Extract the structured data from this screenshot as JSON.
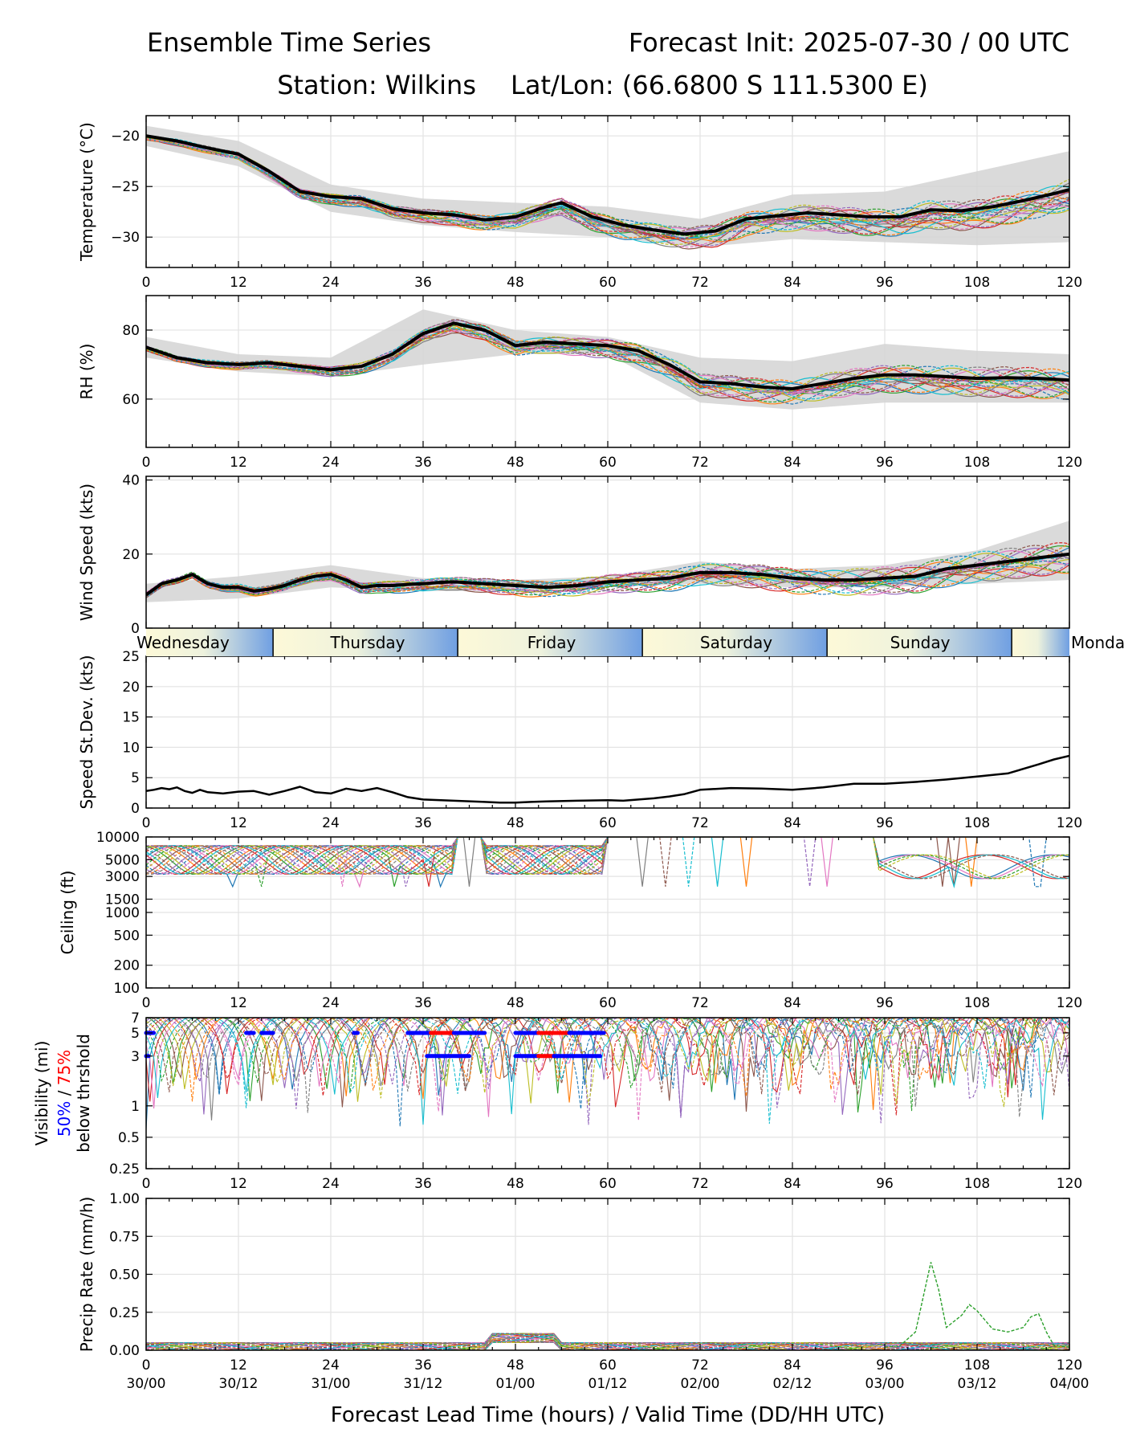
{
  "header": {
    "title": "Ensemble Time Series",
    "init": "Forecast Init: 2025-07-30 / 00 UTC",
    "station": "Station: Wilkins",
    "latlon": "Lat/Lon: (66.6800 S 111.5300 E)"
  },
  "xaxis": {
    "label": "Forecast Lead Time (hours) / Valid Time (DD/HH UTC)",
    "ticks": [
      0,
      12,
      24,
      36,
      48,
      60,
      72,
      84,
      96,
      108,
      120
    ],
    "tick_labels": [
      "0",
      "12",
      "24",
      "36",
      "48",
      "60",
      "72",
      "84",
      "96",
      "108",
      "120"
    ],
    "valid_labels": [
      "30/00",
      "30/12",
      "31/00",
      "31/12",
      "01/00",
      "01/12",
      "02/00",
      "02/12",
      "03/00",
      "03/12",
      "04/00"
    ]
  },
  "day_band": {
    "labels": [
      "Wednesday",
      "Thursday",
      "Friday",
      "Saturday",
      "Sunday",
      "Monda"
    ],
    "dividers_hours": [
      16.5,
      40.5,
      64.5,
      88.5,
      112.5
    ]
  },
  "colors": {
    "members": [
      "#1f77b4",
      "#ff7f0e",
      "#2ca02c",
      "#d62728",
      "#9467bd",
      "#8c564b",
      "#e377c2",
      "#7f7f7f",
      "#bcbd22",
      "#17becf"
    ],
    "mean": "#000000",
    "spread": "#d3d3d3",
    "vis50": "#0000ff",
    "vis75": "#ff0000"
  },
  "chart_data": [
    {
      "id": "temp",
      "type": "line",
      "ylabel": "Temperature (°C)",
      "ylim": [
        -33,
        -18
      ],
      "yticks": [
        -30,
        -25,
        -20
      ],
      "ytick_labels": [
        "−30",
        "−25",
        "−20"
      ],
      "grid": true,
      "members": 20,
      "mean": {
        "x": [
          0,
          4,
          8,
          12,
          16,
          20,
          24,
          28,
          32,
          36,
          40,
          44,
          48,
          52,
          54,
          58,
          62,
          66,
          70,
          74,
          78,
          82,
          86,
          90,
          94,
          98,
          102,
          106,
          110,
          114,
          118,
          120
        ],
        "y": [
          -20,
          -20.5,
          -21.2,
          -21.8,
          -23.5,
          -25.5,
          -26,
          -26.2,
          -27.2,
          -27.6,
          -27.8,
          -28.3,
          -28,
          -27,
          -26.6,
          -28,
          -28.8,
          -29.3,
          -29.7,
          -29.4,
          -28.2,
          -27.9,
          -27.6,
          -27.8,
          -28,
          -28,
          -27.3,
          -27.4,
          -27,
          -26.4,
          -25.7,
          -25.3
        ]
      },
      "spread": {
        "x": [
          0,
          12,
          24,
          36,
          48,
          60,
          72,
          84,
          96,
          108,
          120
        ],
        "lo": [
          -21,
          -23,
          -27.5,
          -28.8,
          -29.5,
          -30,
          -31,
          -30.2,
          -30.5,
          -30.8,
          -30.5
        ],
        "hi": [
          -19,
          -20.5,
          -24.8,
          -26.2,
          -26.6,
          -27,
          -28.2,
          -25.8,
          -25.5,
          -23.5,
          -21.5
        ]
      }
    },
    {
      "id": "rh",
      "type": "line",
      "ylabel": "RH (%)",
      "ylim": [
        46,
        90
      ],
      "yticks": [
        60,
        80
      ],
      "ytick_labels": [
        "60",
        "80"
      ],
      "grid": true,
      "members": 20,
      "mean": {
        "x": [
          0,
          4,
          8,
          12,
          16,
          20,
          24,
          28,
          32,
          36,
          40,
          44,
          48,
          52,
          56,
          60,
          64,
          68,
          72,
          76,
          80,
          84,
          88,
          92,
          96,
          100,
          104,
          108,
          112,
          116,
          120
        ],
        "y": [
          75,
          72,
          70.5,
          70,
          70.5,
          69.5,
          68.5,
          69.5,
          73,
          79,
          82,
          80,
          75.5,
          76.5,
          76,
          75.5,
          74,
          70,
          65,
          64.5,
          63.5,
          63,
          64.5,
          66,
          67,
          67,
          66.5,
          66,
          66.2,
          66,
          65.5
        ]
      },
      "spread": {
        "x": [
          0,
          12,
          24,
          36,
          48,
          60,
          72,
          84,
          96,
          108,
          120
        ],
        "lo": [
          72,
          68,
          66.5,
          70,
          73,
          73,
          59,
          57,
          59,
          59,
          59
        ],
        "hi": [
          78,
          73,
          72,
          86,
          80,
          78,
          72,
          71,
          76,
          74,
          73
        ]
      }
    },
    {
      "id": "wind",
      "type": "line",
      "ylabel": "Wind Speed (kts)",
      "ylim": [
        0,
        41
      ],
      "yticks": [
        0,
        20,
        40
      ],
      "ytick_labels": [
        "0",
        "20",
        "40"
      ],
      "grid": true,
      "members": 20,
      "mean": {
        "x": [
          0,
          2,
          4,
          6,
          8,
          10,
          12,
          14,
          16,
          18,
          20,
          22,
          24,
          26,
          28,
          30,
          32,
          34,
          36,
          38,
          40,
          44,
          48,
          52,
          56,
          60,
          64,
          68,
          72,
          76,
          80,
          84,
          88,
          92,
          96,
          100,
          104,
          108,
          112,
          116,
          120
        ],
        "y": [
          9,
          12,
          13,
          14.5,
          12,
          11,
          11,
          10,
          10.5,
          11.5,
          13,
          14,
          14.5,
          13,
          11,
          11.5,
          11.5,
          11.8,
          12,
          12.3,
          12.5,
          12,
          11.5,
          11,
          11.5,
          12.5,
          13,
          13.5,
          15,
          15,
          14.5,
          13.5,
          13,
          13,
          13.5,
          14,
          16,
          17,
          18,
          19,
          20
        ]
      },
      "spread": {
        "x": [
          0,
          12,
          24,
          36,
          48,
          60,
          72,
          84,
          96,
          108,
          120
        ],
        "lo": [
          7,
          8,
          11,
          10,
          10,
          11,
          12,
          11,
          11,
          12,
          13
        ],
        "hi": [
          12,
          14,
          17,
          13.5,
          13,
          14,
          18,
          16,
          17,
          21,
          29
        ]
      }
    },
    {
      "id": "sd",
      "type": "line",
      "ylabel": "Speed St.Dev. (kts)",
      "ylim": [
        0,
        25
      ],
      "yticks": [
        0,
        5,
        10,
        15,
        20,
        25
      ],
      "ytick_labels": [
        "0",
        "5",
        "10",
        "15",
        "20",
        "25"
      ],
      "grid": true,
      "line": {
        "x": [
          0,
          1,
          2,
          3,
          4,
          5,
          6,
          7,
          8,
          10,
          12,
          14,
          16,
          18,
          20,
          22,
          24,
          26,
          28,
          30,
          32,
          34,
          36,
          40,
          44,
          46,
          48,
          50,
          52,
          56,
          60,
          62,
          64,
          66,
          68,
          70,
          72,
          76,
          80,
          84,
          88,
          92,
          96,
          100,
          104,
          108,
          112,
          116,
          118,
          120
        ],
        "y": [
          2.8,
          3,
          3.3,
          3.1,
          3.4,
          2.8,
          2.5,
          3,
          2.6,
          2.4,
          2.7,
          2.8,
          2.2,
          2.8,
          3.5,
          2.6,
          2.4,
          3.2,
          2.8,
          3.3,
          2.6,
          1.8,
          1.4,
          1.2,
          1,
          0.9,
          0.9,
          1,
          1.1,
          1.2,
          1.3,
          1.2,
          1.4,
          1.6,
          1.9,
          2.3,
          3,
          3.3,
          3.2,
          3,
          3.4,
          4,
          4,
          4.3,
          4.7,
          5.2,
          5.7,
          7.2,
          8,
          8.6
        ]
      }
    },
    {
      "id": "ceiling",
      "type": "line",
      "ylabel": "Ceiling (ft)",
      "yscale": "log",
      "ylim": [
        100,
        10000
      ],
      "yticks": [
        100,
        200,
        500,
        1000,
        1500,
        3000,
        5000,
        10000
      ],
      "ytick_labels": [
        "100",
        "200",
        "500",
        "1000",
        "1500",
        "3000",
        "5000",
        "10000"
      ],
      "grid": true,
      "members": 20
    },
    {
      "id": "vis",
      "type": "line",
      "ylabel": [
        "Visibility (mi)",
        "50%",
        "/",
        "75%",
        "below thrshold"
      ],
      "yscale": "log",
      "ylim": [
        0.25,
        7
      ],
      "yticks": [
        0.25,
        0.5,
        1,
        3,
        5,
        7
      ],
      "ytick_labels": [
        "0.25",
        "0.5",
        "1",
        "3",
        "5",
        "7"
      ],
      "grid": true,
      "members": 20,
      "threshold_bars": [
        {
          "level": 5,
          "color": "blue",
          "x0": 0,
          "x1": 1
        },
        {
          "level": 5,
          "color": "blue",
          "x0": 13,
          "x1": 14
        },
        {
          "level": 5,
          "color": "blue",
          "x0": 15,
          "x1": 16.5
        },
        {
          "level": 5,
          "color": "blue",
          "x0": 27,
          "x1": 27.5
        },
        {
          "level": 5,
          "color": "blue",
          "x0": 34,
          "x1": 37
        },
        {
          "level": 5,
          "color": "red",
          "x0": 37,
          "x1": 40
        },
        {
          "level": 5,
          "color": "blue",
          "x0": 40,
          "x1": 44
        },
        {
          "level": 3,
          "color": "blue",
          "x0": 36.5,
          "x1": 42
        },
        {
          "level": 3,
          "color": "blue",
          "x0": 0,
          "x1": 0.3
        },
        {
          "level": 5,
          "color": "blue",
          "x0": 48,
          "x1": 51
        },
        {
          "level": 5,
          "color": "red",
          "x0": 51,
          "x1": 55
        },
        {
          "level": 5,
          "color": "blue",
          "x0": 55,
          "x1": 59.5
        },
        {
          "level": 3,
          "color": "blue",
          "x0": 48,
          "x1": 51
        },
        {
          "level": 3,
          "color": "red",
          "x0": 51,
          "x1": 53
        },
        {
          "level": 3,
          "color": "blue",
          "x0": 53,
          "x1": 59
        }
      ]
    },
    {
      "id": "precip",
      "type": "line",
      "ylabel": "Precip Rate (mm/h)",
      "ylim": [
        0,
        1
      ],
      "yticks": [
        0,
        0.25,
        0.5,
        0.75,
        1
      ],
      "ytick_labels": [
        "0.00",
        "0.25",
        "0.50",
        "0.75",
        "1.00"
      ],
      "grid": true,
      "members": 20,
      "highlight": {
        "x": [
          96,
          98,
          100,
          101,
          102,
          103,
          104,
          106,
          107,
          108,
          110,
          112,
          114,
          115,
          116,
          117,
          118,
          120
        ],
        "y": [
          0.02,
          0.03,
          0.12,
          0.35,
          0.58,
          0.4,
          0.15,
          0.23,
          0.3,
          0.26,
          0.14,
          0.12,
          0.15,
          0.22,
          0.24,
          0.12,
          0.03,
          0.02
        ]
      }
    }
  ]
}
